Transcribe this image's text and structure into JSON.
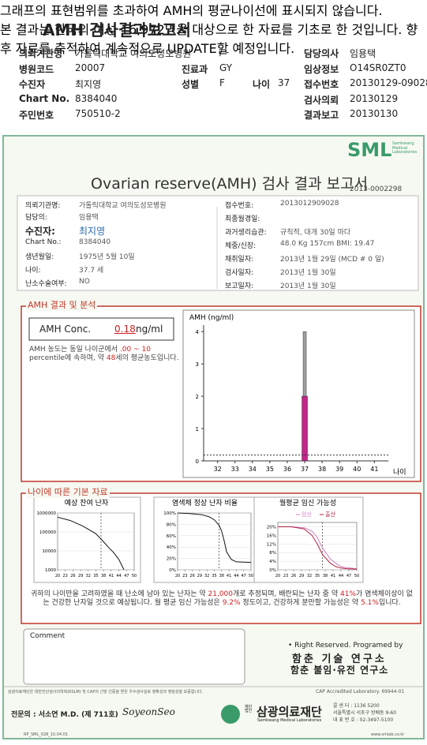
{
  "header": {
    "title": "AMH 검사결과보고서",
    "rows": [
      [
        "의뢰기관명",
        "가톨릭대학교 여의도성모병원",
        "/ -",
        "담당의사",
        "임용택"
      ],
      [
        "병원코드",
        "20007",
        "진료과",
        "GY",
        "임상정보",
        "O14SR0ZT0"
      ],
      [
        "수진자",
        "최지영",
        "성별",
        "F",
        "나이",
        "37",
        "접수번호",
        "20130129-09028"
      ],
      [
        "Chart No.",
        "8384040",
        "검사의뢰",
        "20130129"
      ],
      [
        "주민번호",
        "750510-2",
        "결과보고",
        "20130130"
      ]
    ]
  },
  "report": {
    "logo": "SML",
    "logo_sub": "Samkwang Medical Laboratories",
    "title": "Ovarian reserve(AMH) 검사 결과 보고서",
    "number": "2013-0002298",
    "left_info": [
      [
        "의뢰기관명:",
        "가톨릭대학교 여의도성모병원"
      ],
      [
        "담당의:",
        "임용택"
      ],
      [
        "수진자:",
        "최지영"
      ],
      [
        "Chart No.:",
        "8384040"
      ],
      [
        "생년월일:",
        "1975년 5월 10일"
      ],
      [
        "나이:",
        "37.7 세"
      ],
      [
        "난소수술여부:",
        "NO"
      ]
    ],
    "right_info": [
      [
        "접수번호:",
        "2013012909028"
      ],
      [
        "최종월경일:"
      ],
      [
        "과거생리습관:",
        "규칙적, 대개 30일 마다"
      ],
      [
        "체중/신장:",
        "48.0 Kg  157cm  BMI: 19.47"
      ],
      [
        "채취일자:",
        "2013년 1월 29일  (MCD # 0 일)"
      ],
      [
        "검사일자:",
        "2013년 1월 30일"
      ],
      [
        "보고일자:",
        "2013년 1월 30일"
      ]
    ]
  },
  "amh": {
    "heading": "AMH 결과 및 분석",
    "label": "AMH Conc.",
    "value": 0.18,
    "unit": "ng/ml",
    "text1": [
      "AMH 농도는 동일 나이군에서 ",
      ".00 ~ 10",
      " percentile에 속하며, 약 ",
      "48",
      "세의 평균농도입니다."
    ],
    "text2": "그래프의 표현범위를 초과하여 AMH의 평균나이선에 표시되지 않습니다.",
    "text3": "본 결과는 한국의 여성 16,972명을 대상으로 한 자료를 기초로 한 것입니다. 향후 자료를 축적하여 계속적으로 UPDATE할 예정입니다.",
    "chart": {
      "type": "bar",
      "y_label": "AMH (ng/ml)",
      "x_label": "나이",
      "xlim": [
        31.2,
        41.8
      ],
      "xticks": [
        32,
        33,
        34,
        35,
        36,
        37,
        38,
        39,
        40,
        41
      ],
      "ylim": [
        0,
        4.2
      ],
      "yticks": [
        0,
        1,
        2,
        3,
        4
      ],
      "bars": [
        {
          "x": 37,
          "low": 2,
          "high": 4,
          "color": "#a0a0a0"
        },
        {
          "x": 37,
          "low": 0,
          "high": 2,
          "color": "#c0288a"
        }
      ]
    }
  },
  "age": {
    "heading": "나이에 따른 기본 자료",
    "charts": [
      {
        "type": "line",
        "title": "예상 잔여 난자",
        "log_scale": true,
        "xlim": [
          20,
          50
        ],
        "ylim": [
          1000,
          1000000
        ],
        "xticks": [
          20,
          23,
          26,
          29,
          32,
          35,
          38,
          41,
          44,
          47,
          50
        ],
        "yticks": [
          1000000,
          100000,
          10000,
          1000
        ],
        "age_marker": 37,
        "series": [
          {
            "color": "#111111",
            "x": [
              20,
              25,
              30,
              35,
              38,
              40,
              42,
              44,
              46
            ],
            "values": [
              600000,
              400000,
              200000,
              80000,
              30000,
              15000,
              8000,
              3500,
              1000
            ]
          }
        ]
      },
      {
        "type": "line",
        "title": "염색체 정상 난자 비율",
        "log_scale": false,
        "xlim": [
          20,
          50
        ],
        "ylim": [
          0,
          100
        ],
        "xticks": [
          20,
          23,
          26,
          29,
          32,
          35,
          38,
          41,
          44,
          47,
          50
        ],
        "yticks": [
          {
            "value": 0,
            "label": "0%"
          },
          {
            "value": 20,
            "label": "20%"
          },
          {
            "value": 40,
            "label": "40%"
          },
          {
            "value": 60,
            "label": "60%"
          },
          {
            "value": 80,
            "label": "80%"
          },
          {
            "value": 100,
            "label": "100%"
          }
        ],
        "age_marker": 37,
        "series": [
          {
            "color": "#111111",
            "x": [
              20,
              25,
              30,
              33,
              35,
              37,
              38,
              39,
              40,
              42,
              44,
              50
            ],
            "values": [
              100,
              99,
              97,
              93,
              88,
              78,
              68,
              52,
              32,
              18,
              14,
              13
            ]
          }
        ]
      },
      {
        "type": "line",
        "title": "월평균 임신 가능성",
        "log_scale": false,
        "xlim": [
          20,
          50
        ],
        "ylim": [
          0,
          22
        ],
        "xticks": [
          20,
          23,
          26,
          29,
          32,
          35,
          38,
          41,
          44,
          47,
          50
        ],
        "yticks": [
          {
            "value": 0,
            "label": "0%"
          },
          {
            "value": 4,
            "label": "4%"
          },
          {
            "value": 8,
            "label": "8%"
          },
          {
            "value": 12,
            "label": "12%"
          },
          {
            "value": 16,
            "label": "16%"
          },
          {
            "value": 20,
            "label": "20%"
          }
        ],
        "age_marker": 37,
        "series": [
          {
            "name": "임신",
            "color": "#d080c0",
            "x": [
              20,
              25,
              30,
              33,
              35,
              37,
              40,
              42,
              44,
              46,
              50
            ],
            "values": [
              20,
              20,
              19.5,
              18,
              15,
              10,
              5,
              3,
              1.5,
              1,
              0.5
            ]
          },
          {
            "name": "출산",
            "color": "#b02040",
            "x": [
              20,
              25,
              30,
              33,
              35,
              37,
              40,
              42,
              44,
              46,
              50
            ],
            "values": [
              20,
              20,
              19,
              16,
              12,
              7,
              3,
              1.5,
              0.8,
              0.5,
              0.3
            ]
          }
        ]
      }
    ],
    "summary": [
      "귀하의 나이만을 고려하였을 때 난소에 남아 있는 난자는 약 ",
      "21,000",
      "개로 추정되며, 배란되는 난자 중 약 ",
      "41%",
      "가 염색체이상이 없는 건강한 난자일 것으로 예상됩니다. 월 평균 임신 가능성은 ",
      "9.2%",
      " 정도이고, 건강하게 분만할 가능성은 약 ",
      "5.1%",
      "입니다."
    ]
  },
  "comment": "Comment",
  "credits": [
    "• Right Reserved. Programed by",
    "함춘 기술 연구소",
    "함춘 불임·유전 연구소"
  ],
  "footer": {
    "notice": "삼광의료재단은 대한진단검사의학회(KSLM) 및 CAP의 신빙 인증을 받은 우수검사실로 정확성과 정밀성을 보증합니다.",
    "cap": "CAP Accredited Laboratory. 69944-01",
    "doctor": "전문의 : 서소연 M.D. (제 711호)",
    "signature": "SoyeonSeo",
    "org_prefix": "재단법인",
    "org": "삼광의료재단",
    "org_en": "Samkwang Medical Laboratories",
    "contact": [
      "콜 센 터 : 1136 5200",
      "서울특별시 서초구 방배동 9-60",
      "대 표 번 호 : 02-3497-5100"
    ],
    "code": "RP_SML_028_10.04.01",
    "web": "www.smlab.co.kr"
  }
}
